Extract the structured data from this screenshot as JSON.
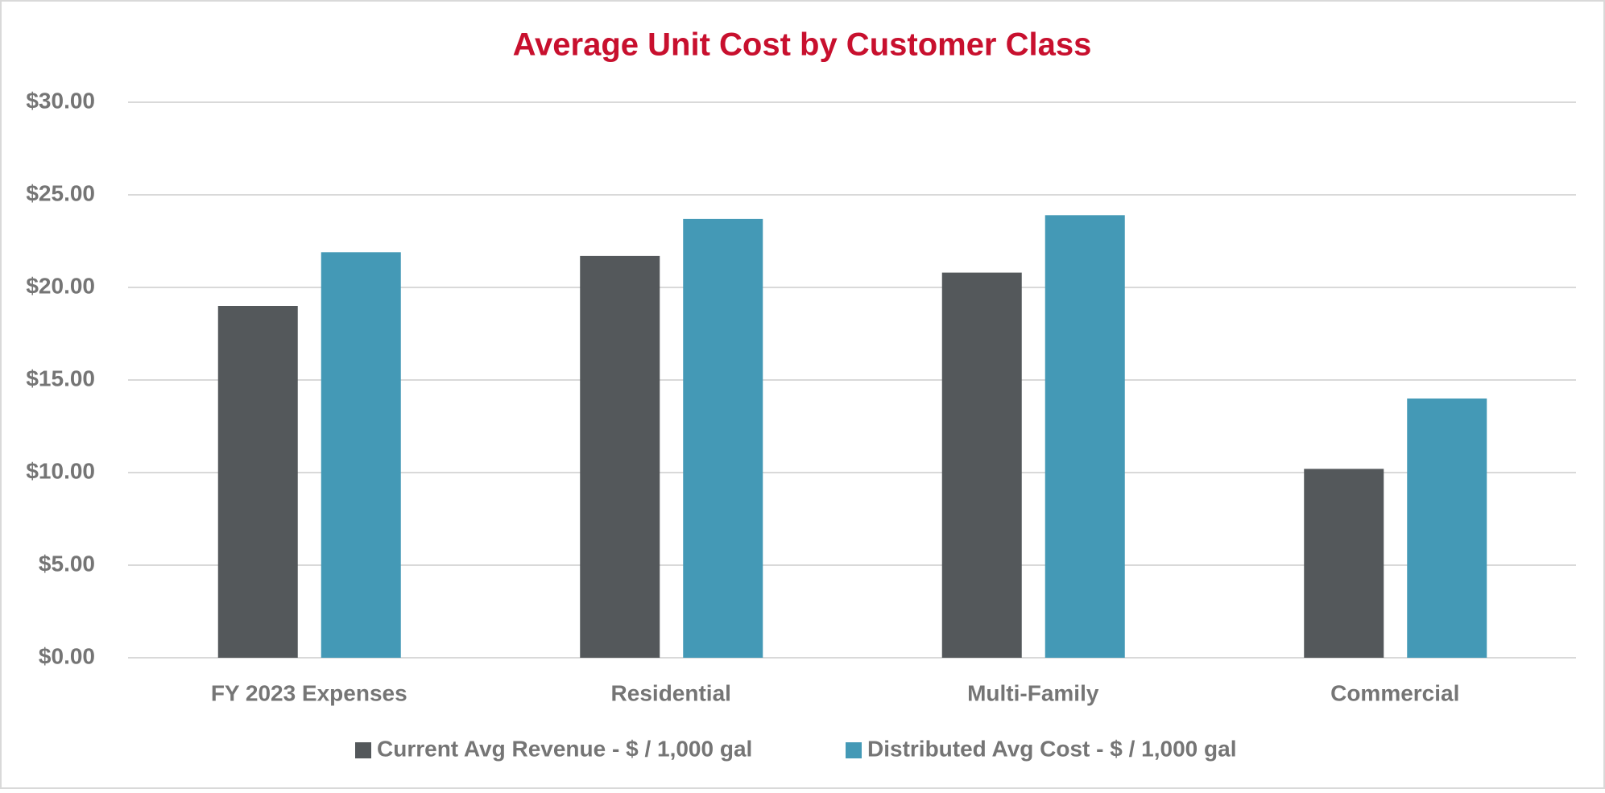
{
  "chart_data": {
    "type": "bar",
    "title": "Average Unit Cost by Customer Class",
    "categories": [
      "FY 2023 Expenses",
      "Residential",
      "Multi-Family",
      "Commercial"
    ],
    "series": [
      {
        "name": "Current Avg Revenue - $ / 1,000 gal",
        "color": "#54585b",
        "values": [
          19.0,
          21.7,
          20.8,
          10.2
        ]
      },
      {
        "name": "Distributed Avg Cost - $ / 1,000 gal",
        "color": "#4499b6",
        "values": [
          21.9,
          23.7,
          23.9,
          14.0
        ]
      }
    ],
    "ylim": [
      0,
      30
    ],
    "yticks": [
      {
        "value": 0,
        "label": "$0.00"
      },
      {
        "value": 5,
        "label": "$5.00"
      },
      {
        "value": 10,
        "label": "$10.00"
      },
      {
        "value": 15,
        "label": "$15.00"
      },
      {
        "value": 20,
        "label": "$20.00"
      },
      {
        "value": 25,
        "label": "$25.00"
      },
      {
        "value": 30,
        "label": "$30.00"
      }
    ],
    "grid": true,
    "legend": "bottom"
  }
}
